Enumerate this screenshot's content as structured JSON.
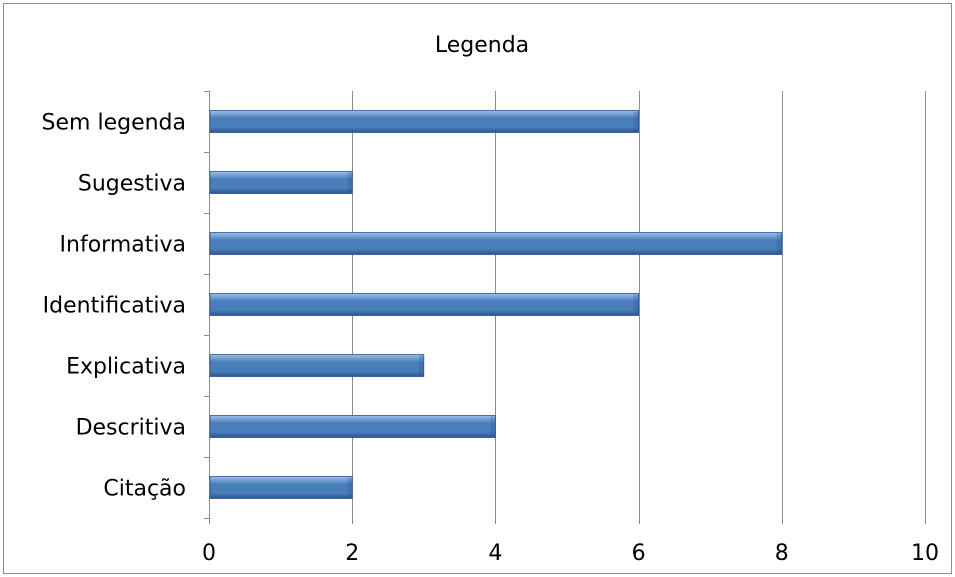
{
  "chart_data": {
    "type": "bar",
    "orientation": "horizontal",
    "title": "Legenda",
    "categories": [
      "Sem legenda",
      "Sugestiva",
      "Informativa",
      "Identificativa",
      "Explicativa",
      "Descritiva",
      "Citação"
    ],
    "values": [
      6,
      2,
      8,
      6,
      3,
      4,
      2
    ],
    "xlim": [
      0,
      10
    ],
    "x_ticks": [
      0,
      2,
      4,
      6,
      8,
      10
    ],
    "xlabel": "",
    "ylabel": "",
    "grid": "vertical",
    "legend": "none",
    "colors": {
      "bar": "#4a7ebb",
      "bar_light": "#9cc0ec",
      "bar_dark": "#2a5590",
      "grid": "#8c8c8c",
      "axis": "#8c8c8c"
    }
  }
}
